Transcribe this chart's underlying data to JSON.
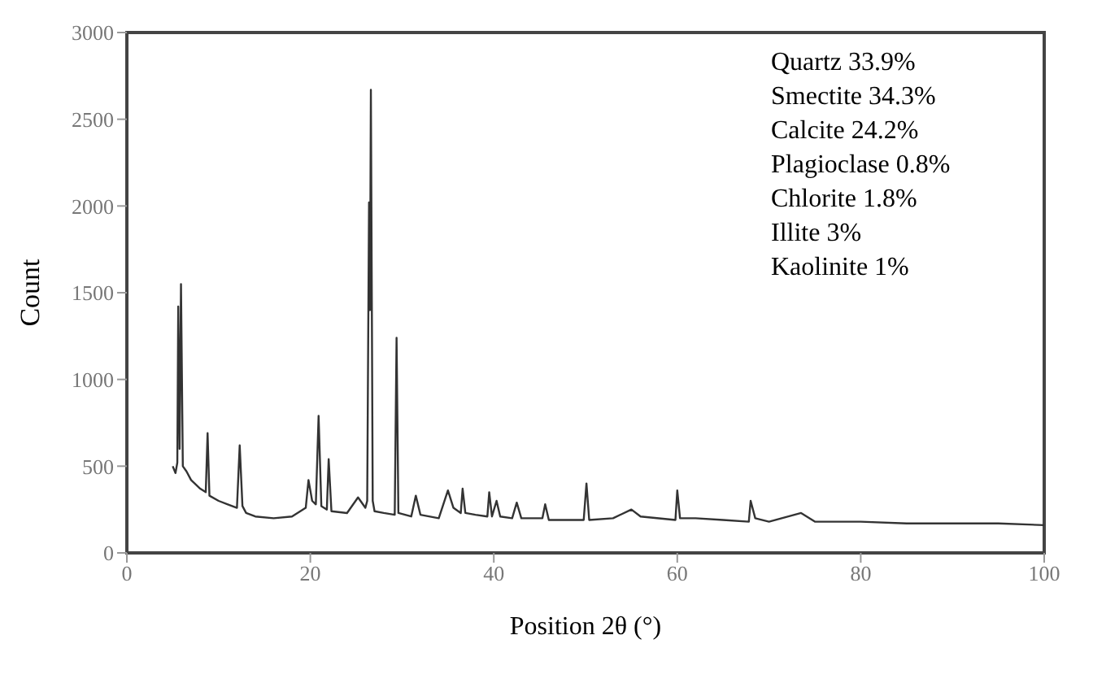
{
  "chart_data": {
    "type": "line",
    "xlabel": "Position 2θ (°)",
    "ylabel": "Count",
    "x": [
      5,
      5.3,
      5.5,
      5.6,
      5.75,
      5.9,
      6.1,
      6.5,
      7,
      8,
      8.6,
      8.8,
      9,
      10,
      11,
      12,
      12.3,
      12.6,
      13,
      14,
      16,
      18,
      19.5,
      19.8,
      20.2,
      20.6,
      20.9,
      21.2,
      21.8,
      22,
      22.3,
      24,
      25.2,
      26,
      26.2,
      26.4,
      26.5,
      26.6,
      26.8,
      27,
      28,
      29.2,
      29.4,
      29.6,
      31,
      31.5,
      32,
      34,
      35,
      35.6,
      36.4,
      36.6,
      36.9,
      38,
      39.3,
      39.5,
      39.8,
      40.3,
      40.7,
      42,
      42.5,
      43,
      45.3,
      45.6,
      46,
      49.8,
      50.1,
      50.4,
      53,
      55,
      56,
      59.8,
      60,
      60.3,
      62,
      65,
      67.8,
      68,
      68.5,
      70,
      73.5,
      75,
      80,
      85,
      90,
      95,
      100
    ],
    "series": [
      {
        "color": "#333333",
        "values": [
          500,
          460,
          520,
          1420,
          600,
          1550,
          500,
          470,
          420,
          370,
          350,
          690,
          330,
          300,
          280,
          260,
          620,
          270,
          230,
          210,
          200,
          210,
          260,
          420,
          300,
          280,
          790,
          270,
          250,
          540,
          240,
          230,
          320,
          260,
          300,
          2020,
          1400,
          2670,
          300,
          240,
          230,
          220,
          1240,
          230,
          210,
          330,
          220,
          200,
          360,
          260,
          230,
          370,
          230,
          220,
          210,
          350,
          210,
          300,
          210,
          200,
          290,
          200,
          200,
          280,
          190,
          190,
          400,
          190,
          200,
          250,
          210,
          190,
          360,
          200,
          200,
          190,
          180,
          300,
          200,
          180,
          230,
          180,
          180,
          170,
          170,
          170,
          160
        ]
      }
    ],
    "xlim": [
      0,
      100
    ],
    "xticks": [
      0,
      20,
      40,
      60,
      80,
      100
    ],
    "ylim": [
      0,
      3000
    ],
    "yticks": [
      0,
      500,
      1000,
      1500,
      2000,
      2500,
      3000
    ],
    "grid": false,
    "marker": "none",
    "line_style": "solid",
    "annotations": [
      "Quartz 33.9%",
      "Smectite 34.3%",
      "Calcite 24.2%",
      "Plagioclase 0.8%",
      "Chlorite 1.8%",
      "Illite 3%",
      "Kaolinite 1%"
    ]
  }
}
